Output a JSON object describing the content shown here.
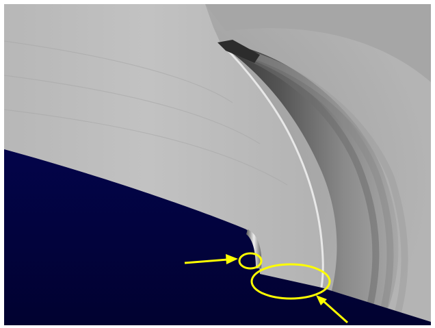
{
  "image": {
    "colors": {
      "frame": "#ffffff",
      "surface_light": "#bdbdbd",
      "surface_mid": "#9a9a9a",
      "surface_dark": "#3a3a3a",
      "ground": "#02033f",
      "annotation": "#ffff00"
    },
    "annotations": [
      {
        "shape": "arrow",
        "points_to": "small-circle"
      },
      {
        "shape": "ellipse",
        "marks": "small-region"
      },
      {
        "shape": "ellipse",
        "marks": "large-region"
      },
      {
        "shape": "arrow",
        "points_to": "large-ellipse"
      }
    ]
  }
}
